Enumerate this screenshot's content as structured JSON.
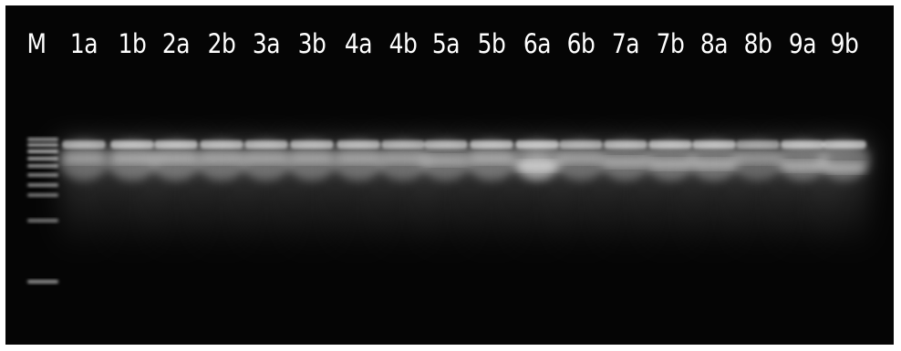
{
  "lane_labels": [
    "M",
    "1a",
    "1b",
    "2a",
    "2b",
    "3a",
    "3b",
    "4a",
    "4b",
    "5a",
    "5b",
    "6a",
    "6b",
    "7a",
    "7b",
    "8a",
    "8b",
    "9a",
    "9b"
  ],
  "colors": {
    "gel_background": "#050505",
    "border": "#ffffff",
    "label": "#ffffff",
    "band": "#ffffff"
  }
}
